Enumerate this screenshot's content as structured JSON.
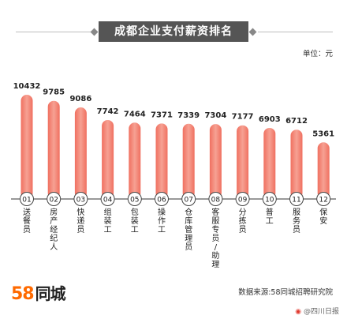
{
  "title": "成都企业支付薪资排名",
  "unit": "单位：元",
  "logo": {
    "num": "58",
    "name": "同城"
  },
  "source": "数据来源:58同城招聘研究院",
  "watermark": "@四川日报",
  "colors": {
    "bar": "#f07060",
    "bar_light": "#f6a193",
    "badge": "#ffffff",
    "badge_border": "#444444"
  },
  "chart_data": {
    "type": "bar",
    "title": "成都企业支付薪资排名",
    "ylabel": "单位：元",
    "ylim": [
      0,
      11000
    ],
    "grid": false,
    "ranks": [
      "01",
      "02",
      "03",
      "04",
      "05",
      "06",
      "07",
      "08",
      "09",
      "10",
      "11",
      "12"
    ],
    "categories": [
      "送餐员",
      "房产经纪人",
      "快递员",
      "组装工",
      "包装工",
      "操作工",
      "仓库管理员",
      "客服专员/助理",
      "分拣员",
      "普工",
      "服务员",
      "保安"
    ],
    "values": [
      10432,
      9785,
      9086,
      7742,
      7464,
      7371,
      7339,
      7304,
      7177,
      6903,
      6712,
      5361
    ]
  }
}
